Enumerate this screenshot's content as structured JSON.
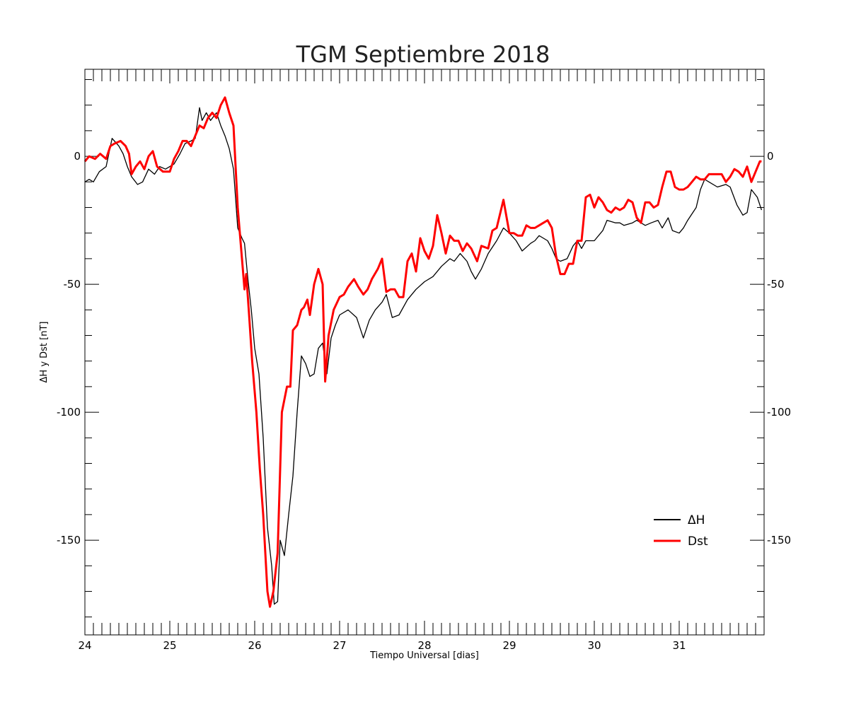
{
  "chart_data": {
    "type": "line",
    "title": "TGM Septiembre 2018",
    "xlabel": "Tiempo Universal [dias]",
    "ylabel": "ΔH y Dst [nT]",
    "xlim": [
      24,
      32
    ],
    "ylim": [
      -187,
      34
    ],
    "x_ticks": [
      24,
      25,
      26,
      27,
      28,
      29,
      30,
      31
    ],
    "y_ticks": [
      0,
      -50,
      -100,
      -150
    ],
    "grid": false,
    "legend_position": "bottom-right",
    "series": [
      {
        "name": "ΔH",
        "color": "#000000",
        "points": [
          [
            24.0,
            -10
          ],
          [
            24.05,
            -9
          ],
          [
            24.1,
            -10
          ],
          [
            24.17,
            -6
          ],
          [
            24.25,
            -4
          ],
          [
            24.32,
            7
          ],
          [
            24.4,
            4
          ],
          [
            24.45,
            1
          ],
          [
            24.5,
            -4
          ],
          [
            24.55,
            -8
          ],
          [
            24.62,
            -11
          ],
          [
            24.68,
            -10
          ],
          [
            24.75,
            -5
          ],
          [
            24.82,
            -7
          ],
          [
            24.88,
            -4
          ],
          [
            24.95,
            -5
          ],
          [
            25.05,
            -3
          ],
          [
            25.12,
            1
          ],
          [
            25.18,
            5
          ],
          [
            25.25,
            6
          ],
          [
            25.3,
            7
          ],
          [
            25.35,
            19
          ],
          [
            25.38,
            14
          ],
          [
            25.43,
            17
          ],
          [
            25.48,
            14
          ],
          [
            25.55,
            17
          ],
          [
            25.6,
            12
          ],
          [
            25.65,
            8
          ],
          [
            25.7,
            3
          ],
          [
            25.75,
            -5
          ],
          [
            25.8,
            -28
          ],
          [
            25.85,
            -32
          ],
          [
            25.88,
            -34
          ],
          [
            25.92,
            -48
          ],
          [
            25.96,
            -60
          ],
          [
            26.0,
            -75
          ],
          [
            26.05,
            -85
          ],
          [
            26.1,
            -110
          ],
          [
            26.15,
            -145
          ],
          [
            26.2,
            -160
          ],
          [
            26.23,
            -175
          ],
          [
            26.27,
            -174
          ],
          [
            26.3,
            -150
          ],
          [
            26.35,
            -156
          ],
          [
            26.4,
            -140
          ],
          [
            26.45,
            -125
          ],
          [
            26.5,
            -100
          ],
          [
            26.55,
            -78
          ],
          [
            26.6,
            -81
          ],
          [
            26.65,
            -86
          ],
          [
            26.7,
            -85
          ],
          [
            26.75,
            -75
          ],
          [
            26.8,
            -73
          ],
          [
            26.85,
            -85
          ],
          [
            26.9,
            -71
          ],
          [
            26.95,
            -66
          ],
          [
            27.0,
            -62
          ],
          [
            27.1,
            -60
          ],
          [
            27.2,
            -63
          ],
          [
            27.28,
            -71
          ],
          [
            27.35,
            -64
          ],
          [
            27.42,
            -60
          ],
          [
            27.5,
            -57
          ],
          [
            27.55,
            -54
          ],
          [
            27.62,
            -63
          ],
          [
            27.7,
            -62
          ],
          [
            27.8,
            -56
          ],
          [
            27.9,
            -52
          ],
          [
            28.0,
            -49
          ],
          [
            28.1,
            -47
          ],
          [
            28.2,
            -43
          ],
          [
            28.3,
            -40
          ],
          [
            28.35,
            -41
          ],
          [
            28.42,
            -38
          ],
          [
            28.5,
            -41
          ],
          [
            28.55,
            -45
          ],
          [
            28.6,
            -48
          ],
          [
            28.67,
            -44
          ],
          [
            28.75,
            -38
          ],
          [
            28.85,
            -33
          ],
          [
            28.93,
            -28
          ],
          [
            29.0,
            -30
          ],
          [
            29.08,
            -33
          ],
          [
            29.15,
            -37
          ],
          [
            29.25,
            -34
          ],
          [
            29.3,
            -33
          ],
          [
            29.35,
            -31
          ],
          [
            29.45,
            -33
          ],
          [
            29.5,
            -36
          ],
          [
            29.55,
            -40
          ],
          [
            29.6,
            -41
          ],
          [
            29.68,
            -40
          ],
          [
            29.75,
            -35
          ],
          [
            29.8,
            -33
          ],
          [
            29.85,
            -36
          ],
          [
            29.9,
            -33
          ],
          [
            30.0,
            -33
          ],
          [
            30.1,
            -29
          ],
          [
            30.15,
            -25
          ],
          [
            30.25,
            -26
          ],
          [
            30.3,
            -26
          ],
          [
            30.35,
            -27
          ],
          [
            30.45,
            -26
          ],
          [
            30.5,
            -25
          ],
          [
            30.55,
            -26
          ],
          [
            30.6,
            -27
          ],
          [
            30.67,
            -26
          ],
          [
            30.75,
            -25
          ],
          [
            30.8,
            -28
          ],
          [
            30.87,
            -24
          ],
          [
            30.92,
            -29
          ],
          [
            31.0,
            -30
          ],
          [
            31.05,
            -28
          ],
          [
            31.1,
            -25
          ],
          [
            31.2,
            -20
          ],
          [
            31.25,
            -13
          ],
          [
            31.3,
            -9
          ],
          [
            31.35,
            -10
          ],
          [
            31.45,
            -12
          ],
          [
            31.55,
            -11
          ],
          [
            31.6,
            -12
          ],
          [
            31.68,
            -19
          ],
          [
            31.75,
            -23
          ],
          [
            31.8,
            -22
          ],
          [
            31.85,
            -13
          ],
          [
            31.92,
            -16
          ],
          [
            31.97,
            -21
          ]
        ]
      },
      {
        "name": "Dst",
        "color": "#ff0000",
        "points": [
          [
            24.0,
            -2
          ],
          [
            24.05,
            0
          ],
          [
            24.12,
            -1
          ],
          [
            24.18,
            1
          ],
          [
            24.25,
            -1
          ],
          [
            24.3,
            4
          ],
          [
            24.35,
            5
          ],
          [
            24.42,
            6
          ],
          [
            24.48,
            4
          ],
          [
            24.52,
            1
          ],
          [
            24.55,
            -7
          ],
          [
            24.6,
            -4
          ],
          [
            24.65,
            -2
          ],
          [
            24.7,
            -5
          ],
          [
            24.75,
            0
          ],
          [
            24.8,
            2
          ],
          [
            24.85,
            -4
          ],
          [
            24.92,
            -6
          ],
          [
            25.0,
            -6
          ],
          [
            25.05,
            -1
          ],
          [
            25.1,
            2
          ],
          [
            25.15,
            6
          ],
          [
            25.2,
            6
          ],
          [
            25.25,
            4
          ],
          [
            25.3,
            8
          ],
          [
            25.35,
            12
          ],
          [
            25.4,
            11
          ],
          [
            25.45,
            15
          ],
          [
            25.5,
            17
          ],
          [
            25.55,
            15
          ],
          [
            25.6,
            20
          ],
          [
            25.65,
            23
          ],
          [
            25.7,
            17
          ],
          [
            25.75,
            12
          ],
          [
            25.8,
            -20
          ],
          [
            25.85,
            -40
          ],
          [
            25.88,
            -52
          ],
          [
            25.9,
            -46
          ],
          [
            25.93,
            -60
          ],
          [
            25.97,
            -80
          ],
          [
            26.02,
            -100
          ],
          [
            26.06,
            -122
          ],
          [
            26.1,
            -140
          ],
          [
            26.15,
            -170
          ],
          [
            26.18,
            -176
          ],
          [
            26.22,
            -170
          ],
          [
            26.27,
            -155
          ],
          [
            26.32,
            -100
          ],
          [
            26.38,
            -90
          ],
          [
            26.42,
            -90
          ],
          [
            26.45,
            -68
          ],
          [
            26.5,
            -66
          ],
          [
            26.55,
            -60
          ],
          [
            26.58,
            -59
          ],
          [
            26.62,
            -56
          ],
          [
            26.65,
            -62
          ],
          [
            26.7,
            -50
          ],
          [
            26.75,
            -44
          ],
          [
            26.8,
            -50
          ],
          [
            26.83,
            -88
          ],
          [
            26.87,
            -70
          ],
          [
            26.93,
            -60
          ],
          [
            27.0,
            -55
          ],
          [
            27.05,
            -54
          ],
          [
            27.1,
            -51
          ],
          [
            27.17,
            -48
          ],
          [
            27.22,
            -51
          ],
          [
            27.28,
            -54
          ],
          [
            27.33,
            -52
          ],
          [
            27.38,
            -48
          ],
          [
            27.45,
            -44
          ],
          [
            27.5,
            -40
          ],
          [
            27.55,
            -53
          ],
          [
            27.6,
            -52
          ],
          [
            27.65,
            -52
          ],
          [
            27.7,
            -55
          ],
          [
            27.75,
            -55
          ],
          [
            27.8,
            -41
          ],
          [
            27.85,
            -38
          ],
          [
            27.9,
            -45
          ],
          [
            27.95,
            -32
          ],
          [
            28.0,
            -37
          ],
          [
            28.05,
            -40
          ],
          [
            28.1,
            -35
          ],
          [
            28.15,
            -23
          ],
          [
            28.2,
            -30
          ],
          [
            28.25,
            -38
          ],
          [
            28.3,
            -31
          ],
          [
            28.35,
            -33
          ],
          [
            28.4,
            -33
          ],
          [
            28.45,
            -37
          ],
          [
            28.5,
            -34
          ],
          [
            28.55,
            -36
          ],
          [
            28.62,
            -41
          ],
          [
            28.67,
            -35
          ],
          [
            28.75,
            -36
          ],
          [
            28.8,
            -29
          ],
          [
            28.85,
            -28
          ],
          [
            28.93,
            -17
          ],
          [
            29.0,
            -30
          ],
          [
            29.05,
            -30
          ],
          [
            29.1,
            -31
          ],
          [
            29.15,
            -31
          ],
          [
            29.2,
            -27
          ],
          [
            29.25,
            -28
          ],
          [
            29.3,
            -28
          ],
          [
            29.35,
            -27
          ],
          [
            29.4,
            -26
          ],
          [
            29.45,
            -25
          ],
          [
            29.5,
            -28
          ],
          [
            29.55,
            -39
          ],
          [
            29.6,
            -46
          ],
          [
            29.65,
            -46
          ],
          [
            29.7,
            -42
          ],
          [
            29.75,
            -42
          ],
          [
            29.8,
            -33
          ],
          [
            29.85,
            -33
          ],
          [
            29.9,
            -16
          ],
          [
            29.95,
            -15
          ],
          [
            30.0,
            -20
          ],
          [
            30.05,
            -16
          ],
          [
            30.1,
            -18
          ],
          [
            30.15,
            -21
          ],
          [
            30.2,
            -22
          ],
          [
            30.25,
            -20
          ],
          [
            30.3,
            -21
          ],
          [
            30.35,
            -20
          ],
          [
            30.4,
            -17
          ],
          [
            30.45,
            -18
          ],
          [
            30.5,
            -24
          ],
          [
            30.55,
            -26
          ],
          [
            30.6,
            -18
          ],
          [
            30.65,
            -18
          ],
          [
            30.7,
            -20
          ],
          [
            30.75,
            -19
          ],
          [
            30.8,
            -12
          ],
          [
            30.85,
            -6
          ],
          [
            30.9,
            -6
          ],
          [
            30.95,
            -12
          ],
          [
            31.0,
            -13
          ],
          [
            31.05,
            -13
          ],
          [
            31.1,
            -12
          ],
          [
            31.15,
            -10
          ],
          [
            31.2,
            -8
          ],
          [
            31.25,
            -9
          ],
          [
            31.3,
            -9
          ],
          [
            31.35,
            -7
          ],
          [
            31.4,
            -7
          ],
          [
            31.45,
            -7
          ],
          [
            31.5,
            -7
          ],
          [
            31.55,
            -10
          ],
          [
            31.6,
            -8
          ],
          [
            31.65,
            -5
          ],
          [
            31.7,
            -6
          ],
          [
            31.75,
            -8
          ],
          [
            31.8,
            -4
          ],
          [
            31.85,
            -10
          ],
          [
            31.9,
            -6
          ],
          [
            31.95,
            -2
          ],
          [
            31.97,
            -2
          ]
        ]
      }
    ]
  }
}
